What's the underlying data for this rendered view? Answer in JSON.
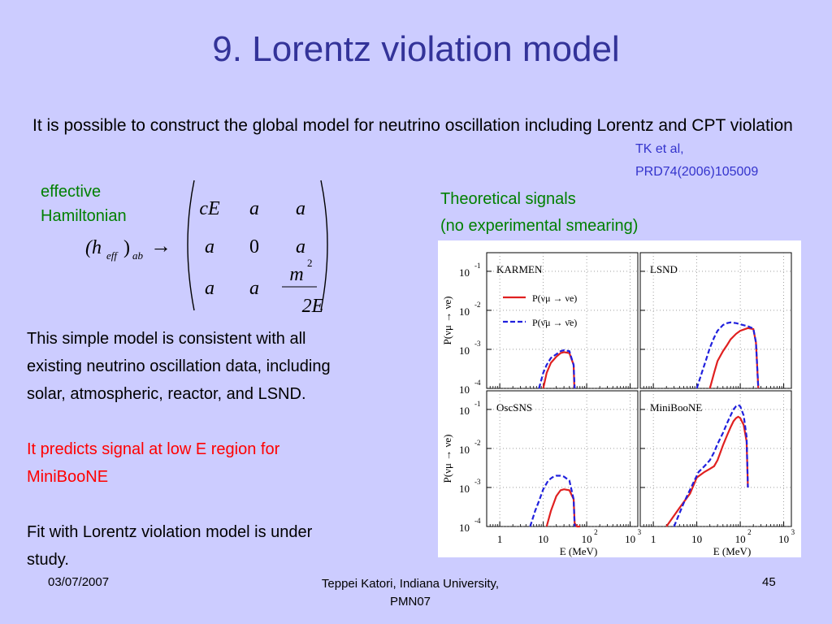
{
  "slide": {
    "title": "9. Lorentz violation model",
    "intro": "It is possible to construct the global model for neutrino oscillation including Lorentz and CPT violation",
    "reference": [
      "TK et al,",
      "PRD74(2006)105009"
    ],
    "hamiltonian_label": [
      "effective",
      "Hamiltonian"
    ],
    "theory_label": [
      "Theoretical signals",
      "(no experimental smearing)"
    ],
    "body_consistent": [
      "This simple model is consistent with all",
      "existing neutrino oscillation data, including",
      "solar, atmospheric, reactor, and LSND."
    ],
    "body_prediction": [
      "It predicts signal at low E region for",
      "MiniBooNE"
    ],
    "body_fit": [
      "Fit with Lorentz violation model is under",
      "study."
    ]
  },
  "equation": {
    "lhs_h": "(h",
    "lhs_eff": "eff",
    "lhs_close": ")",
    "lhs_ab": "ab",
    "arrow": "→",
    "matrix": [
      [
        "cE",
        "a",
        "a"
      ],
      [
        "a",
        "0",
        "a"
      ],
      [
        "a",
        "a",
        ""
      ]
    ],
    "m2_num": "m",
    "m2_exp": "2",
    "m2_den": "2E"
  },
  "footer": {
    "date": "03/07/2007",
    "author": [
      "Teppei Katori, Indiana University,",
      "PMN07"
    ],
    "page": "45"
  },
  "chart_data": {
    "type": "line",
    "xscale": "log",
    "yscale": "log",
    "xlim": [
      0.5,
      1500
    ],
    "ylim": [
      0.0001,
      0.3
    ],
    "xlabel": "E (MeV)",
    "ylabel": "P(νμ → νe)",
    "x_ticks": [
      "1",
      "10",
      "10",
      "10"
    ],
    "x_tick_exponents": [
      "",
      "",
      "2",
      "3"
    ],
    "y_ticks": [
      "10",
      "10",
      "10",
      "10"
    ],
    "y_tick_exponents": [
      "-1",
      "-2",
      "-3",
      "-4"
    ],
    "legend": [
      "P(νμ → νe)",
      "P(ν̄μ → ν̄e)"
    ],
    "colors": {
      "neutrino": "#e02020",
      "antineutrino": "#2020dd"
    },
    "panels": [
      {
        "name": "KARMEN",
        "series": [
          {
            "x": [
              10,
              12,
              15,
              20,
              25,
              30,
              40,
              50,
              52
            ],
            "y": [
              0.0001,
              0.00025,
              0.00045,
              0.00065,
              0.0008,
              0.00085,
              0.0008,
              0.0004,
              0.0001
            ]
          },
          {
            "x": [
              8,
              10,
              12,
              15,
              20,
              25,
              30,
              40,
              50,
              53
            ],
            "y": [
              0.0001,
              0.00025,
              0.0004,
              0.0006,
              0.00075,
              0.0009,
              0.00095,
              0.0009,
              0.0004,
              0.0001
            ]
          }
        ]
      },
      {
        "name": "LSND",
        "series": [
          {
            "x": [
              20,
              25,
              30,
              40,
              50,
              60,
              80,
              100,
              150,
              200,
              230,
              260
            ],
            "y": [
              0.0001,
              0.00025,
              0.0005,
              0.0009,
              0.0013,
              0.0018,
              0.0025,
              0.003,
              0.0035,
              0.0033,
              0.0015,
              0.0001
            ]
          },
          {
            "x": [
              10,
              13,
              16,
              20,
              25,
              30,
              40,
              50,
              60,
              80,
              100,
              150,
              200,
              230,
              260
            ],
            "y": [
              0.0001,
              0.00025,
              0.0005,
              0.0011,
              0.002,
              0.003,
              0.0042,
              0.0047,
              0.0049,
              0.0047,
              0.0044,
              0.0039,
              0.0034,
              0.0015,
              0.0001
            ]
          }
        ]
      },
      {
        "name": "OscSNS",
        "series": [
          {
            "x": [
              12,
              15,
              20,
              25,
              30,
              40,
              50,
              53,
              60,
              70
            ],
            "y": [
              0.0001,
              0.00025,
              0.0006,
              0.00085,
              0.0009,
              0.00085,
              0.0005,
              0.00012,
              0.0001,
              0.0001
            ]
          },
          {
            "x": [
              5,
              6.5,
              8,
              10,
              13,
              16,
              20,
              25,
              30,
              40,
              50,
              53
            ],
            "y": [
              0.0001,
              0.00025,
              0.00045,
              0.0009,
              0.0015,
              0.0018,
              0.002,
              0.002,
              0.0019,
              0.0015,
              0.0005,
              0.0001
            ]
          }
        ]
      },
      {
        "name": "MiniBooNE",
        "series": [
          {
            "x": [
              2,
              4,
              7,
              10,
              15,
              20,
              25,
              30,
              35,
              40,
              50,
              60,
              70,
              80,
              90,
              100,
              120,
              140,
              150
            ],
            "y": [
              0.0001,
              0.0003,
              0.0007,
              0.0018,
              0.0025,
              0.003,
              0.0035,
              0.005,
              0.008,
              0.012,
              0.022,
              0.035,
              0.05,
              0.06,
              0.065,
              0.06,
              0.04,
              0.015,
              0.001
            ]
          },
          {
            "x": [
              3,
              5,
              8,
              11,
              15,
              20,
              25,
              30,
              40,
              50,
              60,
              70,
              80,
              90,
              100,
              120,
              140,
              150
            ],
            "y": [
              0.0001,
              0.0004,
              0.0012,
              0.0025,
              0.0035,
              0.005,
              0.008,
              0.013,
              0.025,
              0.045,
              0.07,
              0.1,
              0.12,
              0.13,
              0.12,
              0.07,
              0.02,
              0.001
            ]
          }
        ]
      }
    ]
  }
}
